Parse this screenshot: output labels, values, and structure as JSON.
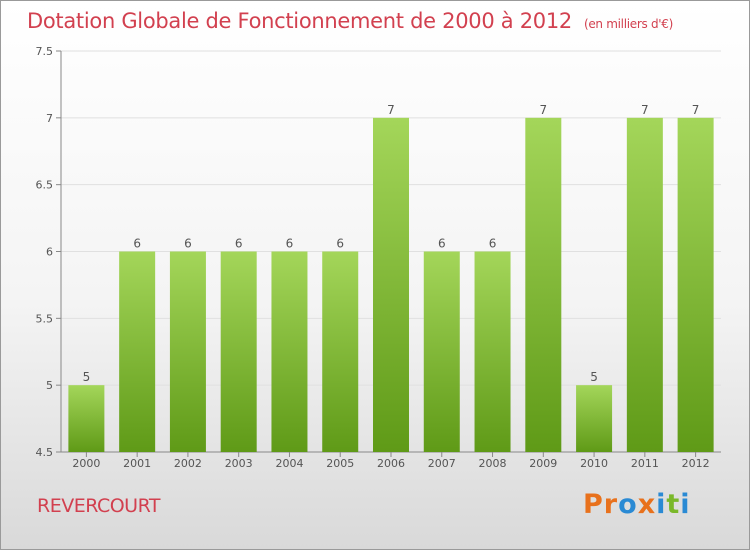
{
  "header": {
    "title": "Dotation Globale de Fonctionnement de 2000 à 2012",
    "subtitle": "(en milliers d'€)"
  },
  "footer": {
    "commune": "REVERCOURT",
    "logo": "Proxiti",
    "logo_colors": [
      "#e8711c",
      "#e8711c",
      "#2a8ad4",
      "#e8711c",
      "#2a8ad4",
      "#7ab82a",
      "#2a8ad4"
    ]
  },
  "chart_data": {
    "type": "bar",
    "title": "Dotation Globale de Fonctionnement de 2000 à 2012",
    "subtitle": "(en milliers d'€)",
    "categories": [
      "2000",
      "2001",
      "2002",
      "2003",
      "2004",
      "2005",
      "2006",
      "2007",
      "2008",
      "2009",
      "2010",
      "2011",
      "2012"
    ],
    "values": [
      5,
      6,
      6,
      6,
      6,
      6,
      7,
      6,
      6,
      7,
      5,
      7,
      7
    ],
    "value_labels": [
      "5",
      "6",
      "6",
      "6",
      "6",
      "6",
      "7",
      "6",
      "6",
      "7",
      "5",
      "7",
      "7"
    ],
    "yticks": [
      4.5,
      5,
      5.5,
      6,
      6.5,
      7,
      7.5
    ],
    "ytick_labels": [
      "4.5",
      "5",
      "5.5",
      "6",
      "6.5",
      "7",
      "7.5"
    ],
    "ylim": [
      4.5,
      7.5
    ],
    "grid": true,
    "bar_color_top": "#a4d65a",
    "bar_color_bottom": "#5f9a17",
    "xlabel": "",
    "ylabel": ""
  }
}
